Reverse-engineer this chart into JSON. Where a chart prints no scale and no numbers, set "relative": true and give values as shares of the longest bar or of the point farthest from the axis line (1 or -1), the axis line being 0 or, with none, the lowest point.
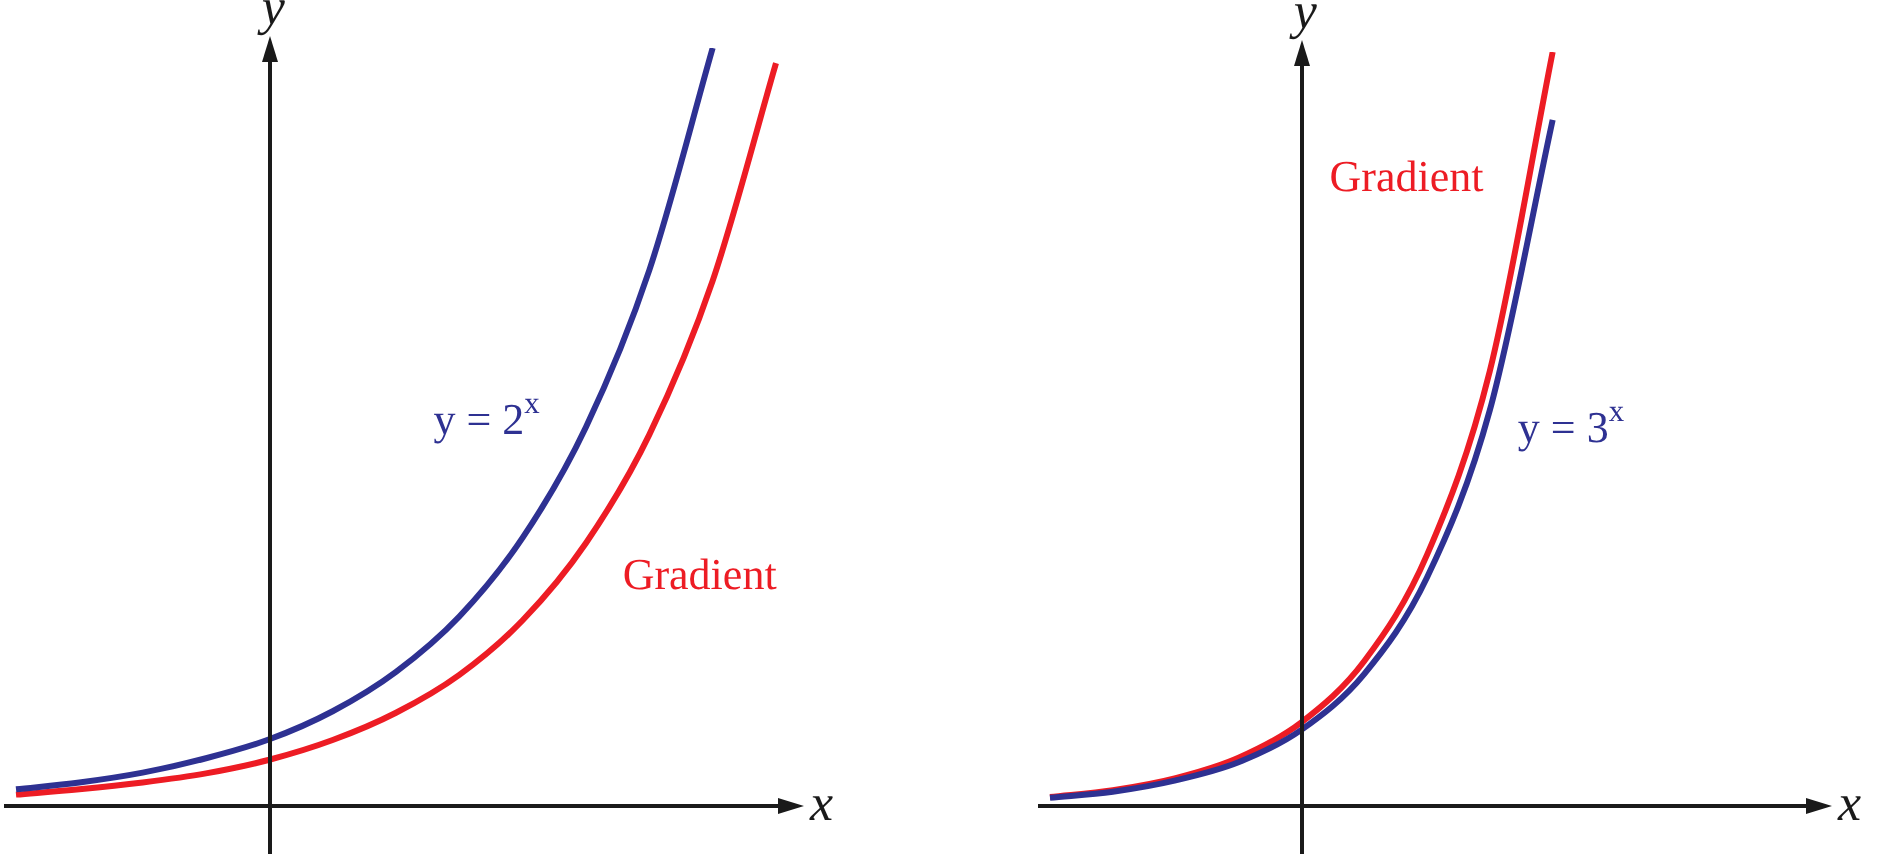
{
  "chart_data": [
    {
      "type": "line",
      "xlabel": "x",
      "ylabel": "y",
      "relative": true,
      "categories": [
        null,
        null,
        null,
        null,
        null,
        null,
        null,
        null,
        null,
        null,
        null,
        null,
        null
      ],
      "series": [
        {
          "name": "y = 2$^{x}$",
          "color": "#2e3192",
          "values": [
            0.022,
            0.031,
            0.044,
            0.063,
            0.088,
            0.125,
            0.177,
            0.25,
            0.354,
            0.5,
            0.707,
            1,
            null
          ]
        },
        {
          "name": "Gradient",
          "color": "#ed1c24",
          "values": [
            0.015,
            0.022,
            0.031,
            0.043,
            0.061,
            0.087,
            0.123,
            0.173,
            0.245,
            0.347,
            0.49,
            0.693,
            0.98
          ]
        }
      ],
      "legend": false,
      "marker": "none"
    },
    {
      "type": "line",
      "xlabel": "x",
      "ylabel": "y",
      "relative": true,
      "categories": [
        null,
        null,
        null,
        null,
        null,
        null,
        null,
        null,
        null,
        null,
        null,
        null,
        null
      ],
      "series": [
        {
          "name": "y = 3$^{x}$",
          "color": "#2e3192",
          "values": [
            0.011,
            0.019,
            0.034,
            0.058,
            0.101,
            0.175,
            0.303,
            0.525,
            0.91,
            null,
            null,
            null,
            null
          ]
        },
        {
          "name": "Gradient",
          "color": "#ed1c24",
          "values": [
            0.012,
            0.021,
            0.037,
            0.064,
            0.111,
            0.192,
            0.333,
            0.577,
            1,
            null,
            null,
            null,
            null
          ]
        }
      ],
      "legend": false,
      "marker": "none"
    }
  ]
}
